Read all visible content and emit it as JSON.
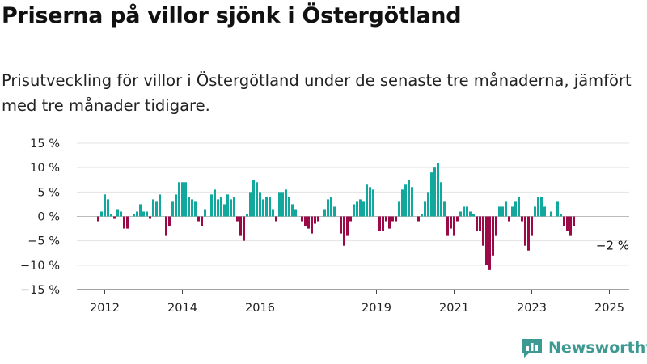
{
  "title": "Priserna på villor sjönk i Östergötland",
  "subtitle": "Prisutveckling för villor i Östergötland under de senaste tre månaderna, jämfört med tre månader tidigare.",
  "brand": "Newsworthy",
  "colors": {
    "positive": "#13a89e",
    "negative": "#9b0a46",
    "grid": "#e3e3e3",
    "axis": "#444444",
    "brand": "#3d9a92"
  },
  "chart_data": {
    "type": "bar",
    "ylim": [
      -15,
      15
    ],
    "yticks": [
      -15,
      -10,
      -5,
      0,
      5,
      10,
      15
    ],
    "ytick_labels": [
      "−15 %",
      "−10 %",
      "−5 %",
      "0 %",
      "5 %",
      "10 %",
      "15 %"
    ],
    "xtick_labels": [
      "2012",
      "2014",
      "2016",
      "2019",
      "2021",
      "2023",
      "2025"
    ],
    "xtick_positions": [
      "2012-01",
      "2014-01",
      "2016-01",
      "2019-01",
      "2021-01",
      "2023-01",
      "2025-01"
    ],
    "start": "2011-11",
    "annotation": {
      "label": "−2 %",
      "at": "2025-01"
    },
    "values": [
      -1,
      1,
      4.5,
      3.5,
      0.5,
      -0.5,
      1.5,
      1,
      -2.5,
      -2.5,
      0,
      0.5,
      1,
      2.5,
      1,
      1,
      -0.5,
      3.5,
      3,
      4.5,
      0,
      -4,
      -2,
      3,
      4.5,
      7,
      7,
      7,
      4,
      3.5,
      3,
      -1,
      -2,
      1.5,
      0,
      4.5,
      5.5,
      3.5,
      4,
      2.5,
      4.5,
      3.5,
      4,
      -1,
      -4,
      -5,
      0.5,
      5,
      7.5,
      7,
      5,
      3.5,
      4,
      4,
      1.5,
      -1,
      5,
      5,
      5.5,
      4,
      2.5,
      1.5,
      0,
      -1,
      -2,
      -2.5,
      -3.5,
      -1.5,
      -1,
      0,
      1.5,
      3.5,
      4,
      2,
      0,
      -3.5,
      -6,
      -4,
      -1,
      2.5,
      3,
      3.5,
      3,
      6.5,
      6,
      5.5,
      0,
      -3,
      -3,
      -1,
      -2.5,
      -1,
      -1,
      3,
      5.5,
      6.5,
      7.5,
      6,
      0,
      -1,
      0.5,
      3,
      5,
      9,
      10,
      11,
      7,
      3,
      -4,
      -2.5,
      -4,
      -1,
      1,
      2,
      2,
      1,
      0.5,
      -3,
      -3,
      -6,
      -10,
      -11,
      -8,
      -4,
      2,
      2,
      3,
      -1,
      2,
      3,
      4,
      -1,
      -6,
      -7,
      -4,
      2,
      4,
      4,
      2,
      0,
      1,
      0,
      3,
      0.5,
      -2,
      -3,
      -4,
      -2
    ]
  }
}
